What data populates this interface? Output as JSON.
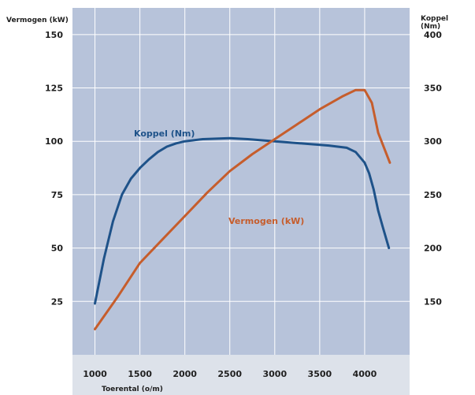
{
  "chart_data": {
    "type": "line",
    "title": "",
    "xlabel": "Toerental (o/m)",
    "ylabel_left": "Vermogen (kW)",
    "ylabel_right": "Koppel\n(Nm)",
    "xlim": [
      750,
      4500
    ],
    "ylim_left": [
      0,
      162.5
    ],
    "ylim_right": [
      100,
      425
    ],
    "x_ticks": [
      1000,
      1500,
      2000,
      2500,
      3000,
      3500,
      4000
    ],
    "y_left_ticks": [
      25,
      50,
      75,
      100,
      125,
      150
    ],
    "y_right_ticks": [
      150,
      200,
      250,
      300,
      350,
      400
    ],
    "grid": true,
    "colors": {
      "plot_bg": "#b7c3da",
      "frame": "#dde2ea",
      "grid": "#ffffff",
      "koppel": "#1e5289",
      "vermogen": "#c65d2c"
    },
    "series": [
      {
        "name": "Koppel (Nm)",
        "axis": "right",
        "color": "#1e5289",
        "x": [
          1000,
          1100,
          1200,
          1300,
          1400,
          1500,
          1600,
          1700,
          1800,
          1900,
          2000,
          2200,
          2500,
          2700,
          3000,
          3300,
          3600,
          3800,
          3900,
          4000,
          4050,
          4100,
          4150,
          4200,
          4270
        ],
        "y": [
          148,
          190,
          225,
          250,
          265,
          275,
          283,
          290,
          295,
          298,
          300,
          302,
          303,
          302,
          300,
          298,
          296,
          294,
          290,
          280,
          270,
          255,
          235,
          220,
          200
        ]
      },
      {
        "name": "Vermogen (kW)",
        "axis": "left",
        "color": "#c65d2c",
        "x": [
          1000,
          1250,
          1500,
          1750,
          2000,
          2250,
          2500,
          2750,
          3000,
          3250,
          3500,
          3750,
          3900,
          4000,
          4080,
          4150,
          4280
        ],
        "y": [
          12,
          27,
          43,
          54,
          65,
          76,
          86,
          94,
          101,
          108,
          115,
          121,
          124,
          124,
          118,
          104,
          90
        ]
      }
    ],
    "annotations": [
      {
        "text": "Koppel (Nm)",
        "series": 0
      },
      {
        "text": "Vermogen (kW)",
        "series": 1
      }
    ]
  }
}
